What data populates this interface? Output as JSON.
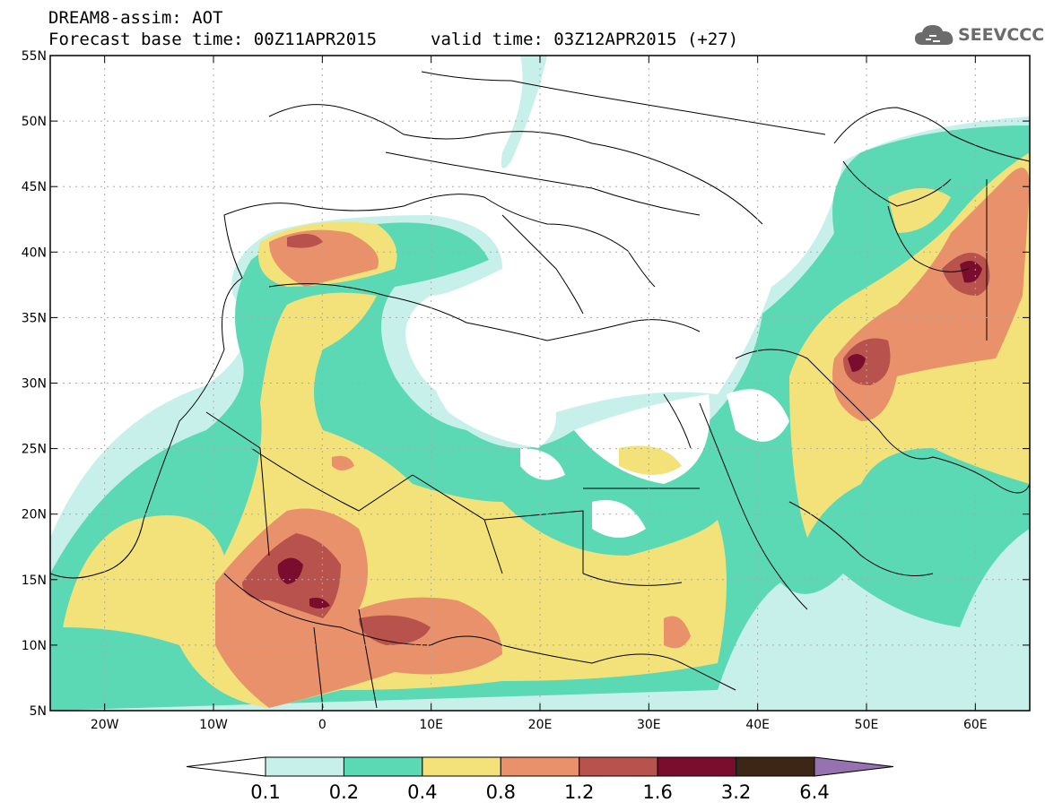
{
  "header": {
    "line1": "DREAM8-assim: AOT",
    "base_time": "Forecast base time: 00Z11APR2015",
    "valid_time": "valid time: 03Z12APR2015 (+27)"
  },
  "logo": {
    "text": "SEEVCCC",
    "icon": "cloud-icon"
  },
  "map": {
    "lat_ticks": [
      "55N",
      "50N",
      "45N",
      "40N",
      "35N",
      "30N",
      "25N",
      "20N",
      "15N",
      "10N",
      "5N"
    ],
    "lon_ticks": [
      "20W",
      "10W",
      "0",
      "10E",
      "20E",
      "30E",
      "40E",
      "50E",
      "60E"
    ],
    "extent": {
      "lon": [
        -25,
        65
      ],
      "lat": [
        5,
        55
      ]
    }
  },
  "colorbar": {
    "labels": [
      "0.1",
      "0.2",
      "0.4",
      "0.8",
      "1.2",
      "1.6",
      "3.2",
      "6.4"
    ],
    "colors": [
      "#ffffff",
      "#c8f0ea",
      "#5ad9b4",
      "#f3e27a",
      "#e8916a",
      "#b8524c",
      "#7a0c2e",
      "#3d2616",
      "#9673b0"
    ]
  }
}
